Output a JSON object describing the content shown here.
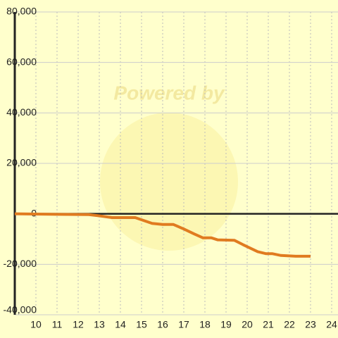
{
  "chart_data": {
    "type": "line",
    "watermark": "Powered by",
    "x": [
      9,
      11,
      12.5,
      13,
      13.6,
      14.7,
      15.5,
      16,
      16.5,
      17,
      17.5,
      17.9,
      18.3,
      18.6,
      19.4,
      19.8,
      20.5,
      20.9,
      21.2,
      21.6,
      22.3,
      23
    ],
    "series": [
      {
        "color": "#e07b20",
        "values": [
          0,
          -200,
          -300,
          -800,
          -1500,
          -1500,
          -3800,
          -4200,
          -4200,
          -6000,
          -8000,
          -9500,
          -9500,
          -10300,
          -10500,
          -12200,
          -15000,
          -15800,
          -15800,
          -16500,
          -16800,
          -16800
        ]
      }
    ],
    "xlim": [
      9,
      24.3
    ],
    "xticks": [
      10,
      11,
      12,
      13,
      14,
      15,
      16,
      17,
      18,
      19,
      20,
      21,
      22,
      23,
      24
    ],
    "ylim": [
      -40000,
      80000
    ],
    "yticks": [
      {
        "value": -40000,
        "label": "-40,000"
      },
      {
        "value": -20000,
        "label": "-20,000"
      },
      0,
      {
        "value": 20000,
        "label": "20,000"
      },
      {
        "value": 40000,
        "label": "40,000"
      },
      {
        "value": 60000,
        "label": "60,000"
      },
      {
        "value": 80000,
        "label": "80,000"
      }
    ],
    "grid": true
  }
}
